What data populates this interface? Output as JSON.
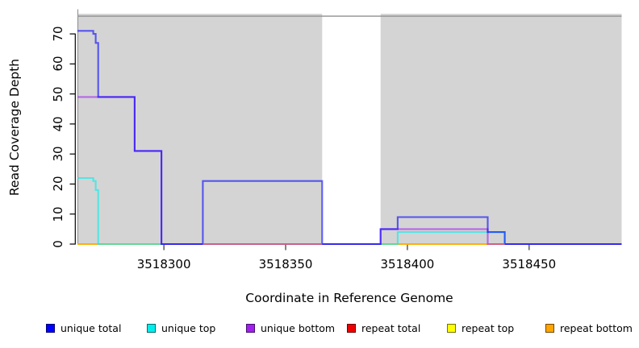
{
  "figure": {
    "background": "#ffffff"
  },
  "axes": {
    "x_label": "Coordinate in Reference Genome",
    "y_label": "Read Coverage Depth",
    "x_ticks": [
      3518300,
      3518350,
      3518400,
      3518450
    ],
    "y_ticks": [
      0,
      10,
      20,
      30,
      40,
      50,
      60,
      70
    ]
  },
  "legend": {
    "items": [
      {
        "label": "unique total",
        "color": "#0000FF"
      },
      {
        "label": "unique top",
        "color": "#00EEEE"
      },
      {
        "label": "unique bottom",
        "color": "#A020F0"
      },
      {
        "label": "repeat total",
        "color": "#EE0000"
      },
      {
        "label": "repeat top",
        "color": "#FFFF00"
      },
      {
        "label": "repeat bottom",
        "color": "#FFA500"
      }
    ]
  },
  "chart_data": {
    "type": "line",
    "title": "",
    "xlabel": "Coordinate in Reference Genome",
    "ylabel": "Read Coverage Depth",
    "xlim": [
      3518264.5,
      3518488
    ],
    "ylim": [
      0,
      77.8
    ],
    "grid": false,
    "legend_position": "bottom",
    "line_style": "step",
    "line_opacity": 0.6,
    "line_width": 2.1,
    "shaded_regions": [
      {
        "x0": 3518264.5,
        "x1": 3518365,
        "top_value": 76.7,
        "color": "#d4d4d4",
        "left_border": "#8c8c8c"
      },
      {
        "x0": 3518389,
        "x1": 3518488,
        "top_value": 76.7,
        "color": "#d4d4d4",
        "left_border": null
      }
    ],
    "top_rule": {
      "value": 75.9,
      "color": "#8f8f8f"
    },
    "series": [
      {
        "name": "repeat total",
        "color": "#EE0000",
        "points": [
          [
            3518264.5,
            0
          ],
          [
            3518488,
            0
          ]
        ]
      },
      {
        "name": "repeat top",
        "color": "#FFFF00",
        "points": [
          [
            3518264.5,
            0
          ],
          [
            3518488,
            0
          ]
        ]
      },
      {
        "name": "repeat bottom",
        "color": "#FFA500",
        "points": [
          [
            3518264.5,
            0
          ],
          [
            3518488,
            0
          ]
        ]
      },
      {
        "name": "unique top",
        "color": "#00EEEE",
        "points": [
          [
            3518264.5,
            22
          ],
          [
            3518271,
            21
          ],
          [
            3518272,
            18
          ],
          [
            3518273,
            0
          ],
          [
            3518396,
            4
          ],
          [
            3518440,
            0
          ],
          [
            3518488,
            0
          ]
        ]
      },
      {
        "name": "unique bottom",
        "color": "#A020F0",
        "points": [
          [
            3518264.5,
            49
          ],
          [
            3518288,
            31
          ],
          [
            3518299,
            0
          ],
          [
            3518389,
            5
          ],
          [
            3518433,
            0
          ],
          [
            3518488,
            0
          ]
        ]
      },
      {
        "name": "unique total",
        "color": "#0000FF",
        "points": [
          [
            3518264.5,
            71
          ],
          [
            3518271,
            70
          ],
          [
            3518272,
            67
          ],
          [
            3518273,
            49
          ],
          [
            3518288,
            31
          ],
          [
            3518299,
            0
          ],
          [
            3518316,
            21
          ],
          [
            3518365,
            0
          ],
          [
            3518389,
            5
          ],
          [
            3518396,
            9
          ],
          [
            3518433,
            4
          ],
          [
            3518440,
            0
          ],
          [
            3518488,
            0
          ]
        ]
      }
    ],
    "baseline_overlays": [
      {
        "x0": 3518316,
        "x1": 3518365,
        "color": "#D06080"
      },
      {
        "x0": 3518433,
        "x1": 3518440,
        "color": "#D06080"
      }
    ]
  }
}
